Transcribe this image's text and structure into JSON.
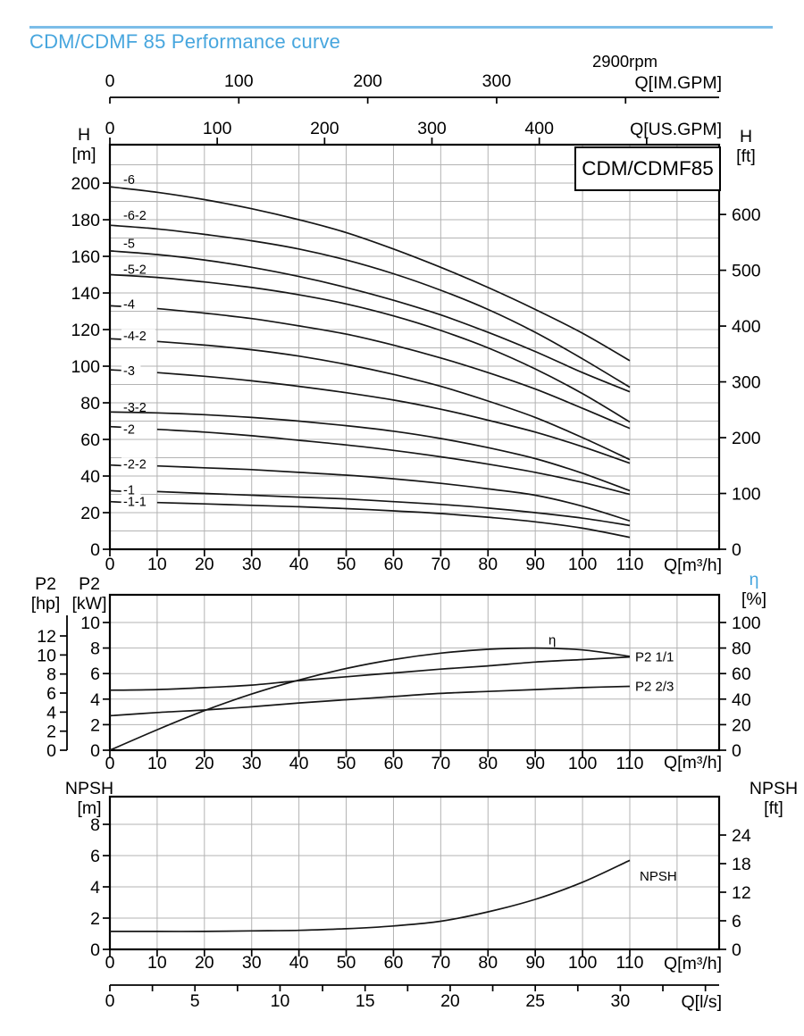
{
  "ui": {
    "title": "CDM/CDMF 85 Performance curve",
    "rpm": "2900rpm",
    "model": "CDM/CDMF85",
    "colors": {
      "accent": "#47a6de",
      "rule": "#7cbde8",
      "grid": "#b3b3b3",
      "curve": "#161616"
    },
    "headers": {
      "h_left": {
        "t": "H",
        "u": "[m]"
      },
      "h_right": {
        "t": "H",
        "u": "[ft]"
      },
      "p2_hp": {
        "t": "P2",
        "u": "[hp]"
      },
      "p2_kw": {
        "t": "P2",
        "u": "[kW]"
      },
      "eta": {
        "t": "η",
        "u": "[%]"
      },
      "npsh_left": {
        "t": "NPSH",
        "u": "[m]"
      },
      "npsh_right": {
        "t": "NPSH",
        "u": "[ft]"
      }
    }
  },
  "chart_data": [
    {
      "type": "line",
      "title": "H-Q head curves",
      "x_label": "Q[m³/h]",
      "x_ticks": [
        0,
        10,
        20,
        30,
        40,
        50,
        60,
        70,
        80,
        90,
        100,
        110
      ],
      "x_max_plot": 128.9,
      "y_left": {
        "label": "H [m]",
        "ticks": [
          0,
          20,
          40,
          60,
          80,
          100,
          120,
          140,
          160,
          180,
          200
        ],
        "max_plot": 221,
        "grid_step": 10
      },
      "y_right": {
        "label": "H [ft]",
        "ticks": [
          0,
          100,
          200,
          300,
          400,
          500,
          600
        ]
      },
      "top_axes": [
        {
          "label": "Q[US.GPM]",
          "ticks": [
            0,
            100,
            200,
            300,
            400
          ],
          "end_tick": 500,
          "units_per_m3h": 4.40287
        },
        {
          "label": "Q[IM.GPM]",
          "ticks": [
            0,
            100,
            200,
            300
          ],
          "end_tick": 400,
          "units_per_m3h": 3.66615
        }
      ],
      "x": [
        0,
        10,
        20,
        30,
        40,
        50,
        60,
        70,
        80,
        90,
        100,
        110
      ],
      "series": [
        {
          "name": "-6",
          "label_h": 202,
          "gap": false,
          "values": [
            198,
            195,
            191,
            186,
            180,
            173,
            164,
            154,
            143,
            131,
            118,
            103
          ]
        },
        {
          "name": "-6-2",
          "label_h": 182.5,
          "gap": false,
          "values": [
            177,
            175,
            172,
            168.5,
            164,
            158,
            150.5,
            141.5,
            131,
            118.5,
            104,
            88.5
          ]
        },
        {
          "name": "-5",
          "label_h": 167,
          "gap": false,
          "values": [
            163,
            161,
            158,
            154,
            149,
            143,
            136,
            128,
            118.5,
            108,
            96.5,
            86
          ]
        },
        {
          "name": "-5-2",
          "label_h": 153,
          "gap": false,
          "values": [
            150,
            148.5,
            146,
            143,
            139,
            134,
            127.5,
            119.5,
            110,
            98.5,
            85,
            69.5
          ]
        },
        {
          "name": "-4",
          "label_h": 134,
          "gap": true,
          "values": [
            133,
            131.5,
            129,
            126,
            122,
            117.5,
            111.5,
            104.5,
            96.5,
            87.5,
            77,
            66
          ]
        },
        {
          "name": "-4-2",
          "label_h": 116.5,
          "gap": true,
          "values": [
            115,
            113.5,
            111.5,
            109,
            105.5,
            101,
            95.5,
            89,
            81,
            72,
            61,
            49
          ]
        },
        {
          "name": "-3",
          "label_h": 97.5,
          "gap": true,
          "values": [
            98,
            96.5,
            94.5,
            92,
            89,
            85.5,
            81.5,
            76.5,
            70.5,
            64,
            56,
            47
          ]
        },
        {
          "name": "-3-2",
          "label_h": 77.5,
          "gap": false,
          "values": [
            75,
            74.5,
            73.5,
            72,
            70,
            67.5,
            64.5,
            60.5,
            55.5,
            49.5,
            41.5,
            32
          ]
        },
        {
          "name": "-2",
          "label_h": 65.5,
          "gap": true,
          "values": [
            67,
            65.5,
            64,
            62,
            59.5,
            57,
            54,
            50.5,
            46.5,
            42,
            36.5,
            30
          ]
        },
        {
          "name": "-2-2",
          "label_h": 46.5,
          "gap": true,
          "values": [
            46,
            45.5,
            44.5,
            43.5,
            42,
            40.5,
            38.5,
            36,
            33,
            29.5,
            23.5,
            15.5
          ]
        },
        {
          "name": "-1",
          "label_h": 32.5,
          "gap": true,
          "values": [
            32,
            31.5,
            30.5,
            29.5,
            28.5,
            27.5,
            26,
            24.5,
            22.5,
            20,
            17,
            13
          ]
        },
        {
          "name": "-1-1",
          "label_h": 26,
          "gap": true,
          "values": [
            26,
            25.5,
            24.8,
            24,
            23.2,
            22.2,
            21,
            19.5,
            17.5,
            15,
            11.5,
            6.5
          ]
        }
      ]
    },
    {
      "type": "line",
      "title": "Shaft power P2 and efficiency",
      "x_label": "Q[m³/h]",
      "x_ticks": [
        0,
        10,
        20,
        30,
        40,
        50,
        60,
        70,
        80,
        90,
        100,
        110
      ],
      "y_left_kw": {
        "label": "P2 [kW]",
        "ticks": [
          0,
          2,
          4,
          6,
          8,
          10
        ],
        "max_plot": 12.17
      },
      "y_left_hp": {
        "label": "P2 [hp]",
        "ticks": [
          0,
          2,
          4,
          6,
          8,
          10,
          12
        ]
      },
      "y_right_pct": {
        "label": "η [%]",
        "ticks": [
          0,
          20,
          40,
          60,
          80,
          100
        ]
      },
      "x": [
        0,
        10,
        20,
        30,
        40,
        50,
        60,
        70,
        80,
        90,
        100,
        110
      ],
      "series": [
        {
          "name": "P2 1/1",
          "axis": "kw",
          "values": [
            4.7,
            4.75,
            4.9,
            5.1,
            5.45,
            5.75,
            6.05,
            6.35,
            6.6,
            6.9,
            7.1,
            7.3
          ]
        },
        {
          "name": "P2 2/3",
          "axis": "kw",
          "values": [
            2.7,
            2.95,
            3.15,
            3.4,
            3.7,
            3.95,
            4.2,
            4.45,
            4.6,
            4.75,
            4.9,
            5.0
          ]
        },
        {
          "name": "η",
          "axis": "pct",
          "values": [
            0,
            16,
            31,
            44,
            55,
            64,
            71,
            76,
            79,
            80,
            78.5,
            73.5
          ]
        }
      ]
    },
    {
      "type": "line",
      "title": "NPSH curve",
      "x_label": "Q[m³/h]",
      "x_ticks": [
        0,
        10,
        20,
        30,
        40,
        50,
        60,
        70,
        80,
        90,
        100,
        110
      ],
      "y_left": {
        "label": "NPSH [m]",
        "ticks": [
          0,
          2,
          4,
          6,
          8
        ],
        "max_plot": 9.77
      },
      "y_right": {
        "label": "NPSH [ft]",
        "ticks": [
          0,
          6,
          12,
          18,
          24
        ]
      },
      "x_axis2": {
        "label": "Q[l/s]",
        "ticks": [
          0,
          5,
          10,
          15,
          20,
          25,
          30
        ],
        "minor_step": 2.5,
        "units_per_m3h": 0.27778
      },
      "x": [
        0,
        10,
        20,
        30,
        40,
        50,
        60,
        70,
        80,
        90,
        100,
        110
      ],
      "series": [
        {
          "name": "NPSH",
          "values": [
            1.15,
            1.15,
            1.15,
            1.18,
            1.22,
            1.32,
            1.5,
            1.8,
            2.4,
            3.2,
            4.3,
            5.7
          ]
        }
      ]
    }
  ]
}
